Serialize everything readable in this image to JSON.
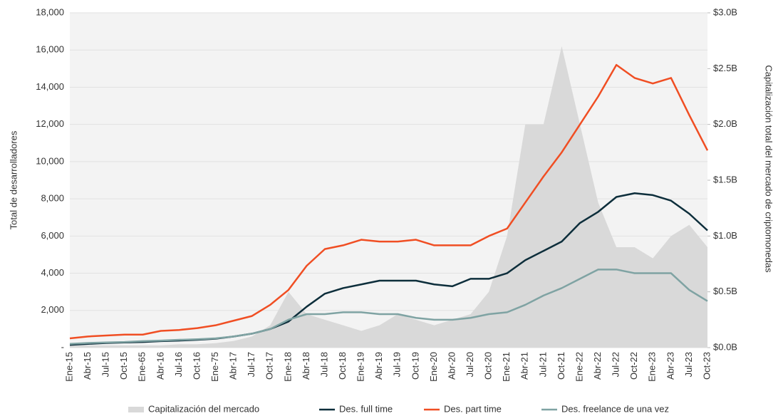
{
  "chart_data": {
    "type": "line",
    "ylabel": "Total de desarrolladores",
    "y2label": "Capitalización total del mercado de criptomonedas",
    "categories": [
      "Ene-15",
      "Abr-15",
      "Jul-15",
      "Oct-15",
      "Ene-65",
      "Abr-16",
      "Jul-16",
      "Oct-16",
      "Ene-75",
      "Abr-17",
      "Jul-17",
      "Oct-17",
      "Ene-18",
      "Abr-18",
      "Jul-18",
      "Oct-18",
      "Ene-19",
      "Abr-19",
      "Jul-19",
      "Oct-19",
      "Ene-20",
      "Abr-20",
      "Jul-20",
      "Oct-20",
      "Ene-21",
      "Abr-21",
      "Jul-21",
      "Oct-21",
      "Ene-22",
      "Abr-22",
      "Jul-22",
      "Oct-22",
      "Ene-23",
      "Abr-23",
      "Jul-23",
      "Oct-23"
    ],
    "series": [
      {
        "name": "Capitalización del mercado",
        "color": "#d9d9d9",
        "kind": "area",
        "axis": "y2",
        "values": [
          0.02,
          0.02,
          0.02,
          0.02,
          0.02,
          0.02,
          0.03,
          0.03,
          0.04,
          0.06,
          0.1,
          0.2,
          0.5,
          0.3,
          0.25,
          0.2,
          0.15,
          0.2,
          0.3,
          0.25,
          0.2,
          0.25,
          0.3,
          0.5,
          1.0,
          2.0,
          2.0,
          2.7,
          2.0,
          1.3,
          0.9,
          0.9,
          0.8,
          1.0,
          1.1,
          0.9
        ]
      },
      {
        "name": "Des. full time",
        "color": "#0d2e3b",
        "kind": "line",
        "values": [
          150,
          200,
          250,
          280,
          300,
          350,
          380,
          420,
          480,
          600,
          750,
          1000,
          1400,
          2200,
          2900,
          3200,
          3400,
          3600,
          3600,
          3600,
          3400,
          3300,
          3700,
          3700,
          4000,
          4700,
          5200,
          5700,
          6700,
          7300,
          8100,
          8300,
          8200,
          7900,
          7200,
          6300
        ]
      },
      {
        "name": "Des. part time",
        "color": "#f04e23",
        "kind": "line",
        "values": [
          500,
          600,
          650,
          700,
          700,
          900,
          950,
          1050,
          1200,
          1450,
          1700,
          2300,
          3100,
          4400,
          5300,
          5500,
          5800,
          5700,
          5700,
          5800,
          5500,
          5500,
          5500,
          6000,
          6400,
          7800,
          9200,
          10500,
          12000,
          13500,
          15200,
          14500,
          14200,
          14500,
          12500,
          10600
        ]
      },
      {
        "name": "Des. freelance de una vez",
        "color": "#7fa3a3",
        "kind": "line",
        "values": [
          200,
          250,
          280,
          300,
          350,
          380,
          420,
          450,
          500,
          600,
          750,
          1000,
          1500,
          1800,
          1800,
          1900,
          1900,
          1800,
          1800,
          1600,
          1500,
          1500,
          1600,
          1800,
          1900,
          2300,
          2800,
          3200,
          3700,
          4200,
          4200,
          4000,
          4000,
          4000,
          3100,
          2500
        ]
      }
    ],
    "ylim": [
      0,
      18000
    ],
    "yticks": [
      {
        "value": 0,
        "label": "-"
      },
      {
        "value": 2000,
        "label": "2,000"
      },
      {
        "value": 4000,
        "label": "4,000"
      },
      {
        "value": 6000,
        "label": "6,000"
      },
      {
        "value": 8000,
        "label": "8,000"
      },
      {
        "value": 10000,
        "label": "10,000"
      },
      {
        "value": 12000,
        "label": "12,000"
      },
      {
        "value": 14000,
        "label": "14,000"
      },
      {
        "value": 16000,
        "label": "16,000"
      },
      {
        "value": 18000,
        "label": "18,000"
      }
    ],
    "y2lim": [
      0,
      3.0
    ],
    "y2ticks": [
      {
        "value": 0,
        "label": "$0.0B"
      },
      {
        "value": 0.5,
        "label": "$0.5B"
      },
      {
        "value": 1.0,
        "label": "$1.0B"
      },
      {
        "value": 1.5,
        "label": "$1.5B"
      },
      {
        "value": 2.0,
        "label": "$2.0B"
      },
      {
        "value": 2.5,
        "label": "$2.5B"
      },
      {
        "value": 3.0,
        "label": "$3.0B"
      }
    ],
    "grid": true
  }
}
